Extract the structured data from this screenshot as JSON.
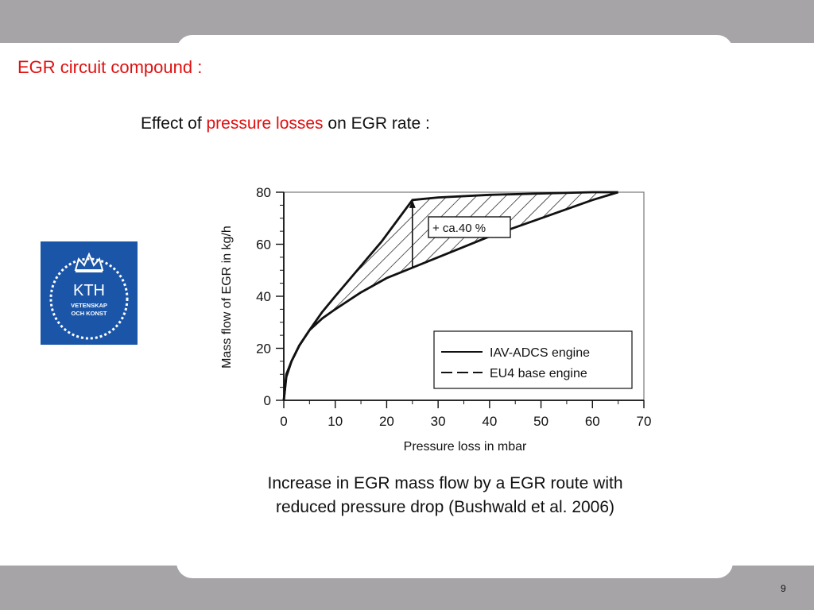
{
  "slide": {
    "title": "EGR circuit compound :",
    "subtitle_pre": "Effect of ",
    "subtitle_highlight": "pressure losses",
    "subtitle_post": " on EGR rate :",
    "caption_line1": "Increase in EGR mass flow by a EGR route with",
    "caption_line2": "reduced pressure drop (Bushwald et al. 2006)",
    "page_number": "9"
  },
  "logo": {
    "line1": "KTH",
    "line2": "VETENSKAP",
    "line3": "OCH KONST",
    "color": "#1a55a8"
  },
  "colors": {
    "accent_red": "#e01010",
    "band_gray": "#a7a4a8"
  },
  "chart_data": {
    "type": "line",
    "title": "",
    "xlabel": "Pressure loss in mbar",
    "ylabel": "Mass flow of EGR in kg/h",
    "xlim": [
      0,
      70
    ],
    "ylim": [
      0,
      80
    ],
    "xticks": [
      0,
      10,
      20,
      30,
      40,
      50,
      60,
      70
    ],
    "yticks": [
      0,
      20,
      40,
      60,
      80
    ],
    "legend_position": "bottom-right",
    "series": [
      {
        "name": "IAV-ADCS engine",
        "style": "solid",
        "x": [
          0,
          0.5,
          1.5,
          3,
          5,
          7.5,
          10,
          13,
          16,
          19,
          22,
          25,
          30,
          40,
          50,
          60,
          65
        ],
        "y": [
          0,
          10,
          15,
          21,
          27,
          34,
          40,
          47,
          54,
          61,
          69,
          77,
          78,
          79,
          79.5,
          80,
          80
        ]
      },
      {
        "name": "EU4 base engine",
        "style": "dashed",
        "x": [
          0,
          0.5,
          1.5,
          3,
          5,
          7.5,
          10,
          15,
          20,
          25,
          30,
          40,
          50,
          60,
          65
        ],
        "y": [
          0,
          9,
          15,
          21,
          27,
          31.5,
          35,
          41.5,
          47,
          51,
          55,
          63,
          70,
          77,
          80
        ]
      }
    ],
    "annotations": [
      {
        "text": "+ ca.40 %",
        "x_from": 25,
        "y_from": 51,
        "y_to": 77
      }
    ]
  }
}
